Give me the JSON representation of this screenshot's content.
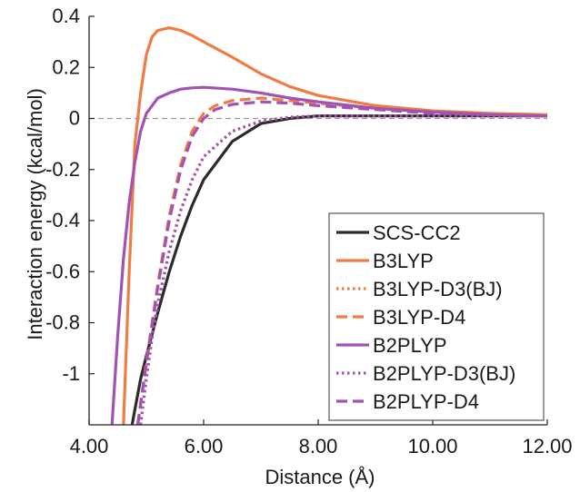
{
  "chart_data": {
    "type": "line",
    "title": "",
    "xlabel": "Distance (Å)",
    "ylabel": "Interaction energy (kcal/mol)",
    "xlim": [
      4.0,
      12.0
    ],
    "ylim": [
      -1.2,
      0.4
    ],
    "xticks": [
      4.0,
      6.0,
      8.0,
      10.0,
      12.0
    ],
    "xtick_labels": [
      "4.00",
      "6.00",
      "8.00",
      "10.00",
      "12.00"
    ],
    "yticks": [
      0.4,
      0.2,
      0,
      -0.2,
      -0.4,
      -0.6,
      -0.8,
      -1
    ],
    "ytick_labels": [
      "0.4",
      "0.2",
      "0",
      "-0.2",
      "-0.4",
      "-0.6",
      "-0.8",
      "-1"
    ],
    "reference_line": {
      "y": 0,
      "style": "dashed",
      "color": "#9a9a9a"
    },
    "legend_position": "bottom-right",
    "grid": false,
    "series": [
      {
        "name": "SCS-CC2",
        "color": "#2b2b2b",
        "dash": "solid",
        "x": [
          4.75,
          4.8,
          4.9,
          5.0,
          5.2,
          5.4,
          5.6,
          5.8,
          6.0,
          6.5,
          7.0,
          7.5,
          8.0,
          9.0,
          10.0,
          11.0,
          12.0
        ],
        "y": [
          -1.2,
          -1.14,
          -1.02,
          -0.93,
          -0.76,
          -0.6,
          -0.46,
          -0.34,
          -0.24,
          -0.09,
          -0.02,
          0.0,
          0.01,
          0.01,
          0.01,
          0.01,
          0.01
        ]
      },
      {
        "name": "B3LYP",
        "color": "#ef7b45",
        "dash": "solid",
        "x": [
          4.6,
          4.7,
          4.8,
          4.9,
          5.0,
          5.1,
          5.2,
          5.3,
          5.4,
          5.5,
          5.6,
          5.8,
          6.0,
          6.5,
          7.0,
          7.5,
          8.0,
          9.0,
          10.0,
          11.0,
          12.0
        ],
        "y": [
          -1.2,
          -0.6,
          -0.1,
          0.1,
          0.25,
          0.32,
          0.345,
          0.35,
          0.355,
          0.35,
          0.345,
          0.325,
          0.3,
          0.24,
          0.175,
          0.125,
          0.09,
          0.05,
          0.03,
          0.02,
          0.015
        ]
      },
      {
        "name": "B3LYP-D3(BJ)",
        "color": "#ef7b45",
        "dash": "dotted",
        "x": [
          4.9,
          5.0,
          5.1,
          5.2,
          5.4,
          5.6,
          5.8,
          6.0,
          6.5,
          7.0,
          7.5,
          8.0,
          9.0,
          10.0,
          11.0,
          12.0
        ],
        "y": [
          -1.2,
          -1.0,
          -0.85,
          -0.72,
          -0.52,
          -0.36,
          -0.24,
          -0.15,
          -0.05,
          -0.01,
          0.005,
          0.01,
          0.01,
          0.01,
          0.01,
          0.01
        ]
      },
      {
        "name": "B3LYP-D4",
        "color": "#ef7b45",
        "dash": "dashed",
        "x": [
          4.85,
          5.0,
          5.2,
          5.4,
          5.6,
          5.8,
          6.0,
          6.2,
          6.5,
          7.0,
          7.5,
          8.0,
          9.0,
          10.0,
          11.0,
          12.0
        ],
        "y": [
          -1.2,
          -0.95,
          -0.65,
          -0.38,
          -0.18,
          -0.05,
          0.02,
          0.05,
          0.07,
          0.08,
          0.07,
          0.06,
          0.04,
          0.025,
          0.015,
          0.01
        ]
      },
      {
        "name": "B2PLYP",
        "color": "#a153b3",
        "dash": "solid",
        "x": [
          4.4,
          4.5,
          4.6,
          4.7,
          4.8,
          4.9,
          5.0,
          5.1,
          5.2,
          5.4,
          5.6,
          5.8,
          6.0,
          6.5,
          7.0,
          7.5,
          8.0,
          9.0,
          10.0,
          11.0,
          12.0
        ],
        "y": [
          -1.2,
          -0.85,
          -0.55,
          -0.33,
          -0.17,
          -0.05,
          0.02,
          0.05,
          0.08,
          0.1,
          0.115,
          0.12,
          0.122,
          0.115,
          0.1,
          0.08,
          0.065,
          0.04,
          0.025,
          0.015,
          0.01
        ]
      },
      {
        "name": "B2PLYP-D3(BJ)",
        "color": "#a153b3",
        "dash": "dotted",
        "x": [
          4.9,
          5.0,
          5.1,
          5.2,
          5.4,
          5.6,
          5.8,
          6.0,
          6.5,
          7.0,
          7.5,
          8.0,
          9.0,
          10.0,
          11.0,
          12.0
        ],
        "y": [
          -1.2,
          -1.02,
          -0.86,
          -0.73,
          -0.52,
          -0.36,
          -0.24,
          -0.15,
          -0.05,
          -0.01,
          0.005,
          0.01,
          0.01,
          0.01,
          0.01,
          0.01
        ]
      },
      {
        "name": "B2PLYP-D4",
        "color": "#a153b3",
        "dash": "dashed",
        "x": [
          4.85,
          5.0,
          5.2,
          5.4,
          5.6,
          5.8,
          6.0,
          6.2,
          6.5,
          7.0,
          7.5,
          8.0,
          9.0,
          10.0,
          11.0,
          12.0
        ],
        "y": [
          -1.2,
          -0.96,
          -0.66,
          -0.4,
          -0.2,
          -0.07,
          0.0,
          0.035,
          0.055,
          0.065,
          0.06,
          0.05,
          0.035,
          0.02,
          0.015,
          0.01
        ]
      }
    ]
  }
}
